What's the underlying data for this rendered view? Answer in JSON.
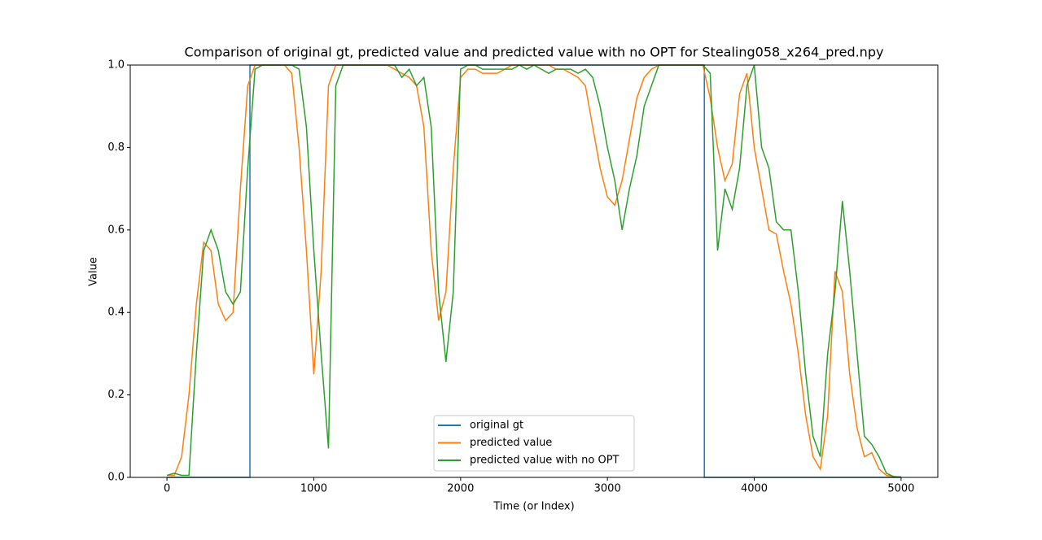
{
  "chart_data": {
    "type": "line",
    "title": "Comparison of original gt, predicted value and predicted value with no OPT for Stealing058_x264_pred.npy",
    "xlabel": "Time (or Index)",
    "ylabel": "Value",
    "xlim": [
      -250,
      5250
    ],
    "ylim": [
      0,
      1
    ],
    "xticks": [
      0,
      1000,
      2000,
      3000,
      4000,
      5000
    ],
    "yticks": [
      {
        "value": 0,
        "label": "0.0"
      },
      0.2,
      0.4,
      0.6,
      0.8,
      {
        "value": 1,
        "label": "1.0"
      }
    ],
    "legend": "lower center",
    "series": [
      {
        "name": "original gt",
        "color": "#1f77b4",
        "x": [
          0,
          565,
          565,
          3660,
          3660,
          5000
        ],
        "values": [
          0,
          0,
          1,
          1,
          0,
          0
        ]
      },
      {
        "name": "predicted value",
        "color": "#ff7f0e",
        "x": [
          0,
          50,
          100,
          150,
          200,
          250,
          300,
          350,
          400,
          450,
          500,
          550,
          600,
          650,
          700,
          750,
          800,
          850,
          900,
          950,
          1000,
          1050,
          1100,
          1150,
          1200,
          1250,
          1300,
          1350,
          1400,
          1450,
          1500,
          1550,
          1600,
          1650,
          1700,
          1750,
          1800,
          1850,
          1900,
          1950,
          2000,
          2050,
          2100,
          2150,
          2200,
          2250,
          2300,
          2350,
          2400,
          2450,
          2500,
          2550,
          2600,
          2650,
          2700,
          2750,
          2800,
          2850,
          2900,
          2950,
          3000,
          3050,
          3100,
          3150,
          3200,
          3250,
          3300,
          3350,
          3400,
          3450,
          3500,
          3550,
          3600,
          3650,
          3700,
          3750,
          3800,
          3850,
          3900,
          3950,
          4000,
          4050,
          4100,
          4150,
          4200,
          4250,
          4300,
          4350,
          4400,
          4450,
          4500,
          4550,
          4600,
          4650,
          4700,
          4750,
          4800,
          4850,
          4900,
          4950,
          5000
        ],
        "values": [
          0.005,
          0.005,
          0.05,
          0.2,
          0.42,
          0.57,
          0.55,
          0.42,
          0.38,
          0.4,
          0.7,
          0.95,
          1.0,
          1.0,
          1.0,
          1.0,
          1.0,
          0.98,
          0.8,
          0.55,
          0.25,
          0.5,
          0.95,
          1.0,
          1.0,
          1.0,
          1.0,
          1.0,
          1.0,
          1.0,
          1.0,
          0.99,
          0.98,
          0.97,
          0.95,
          0.85,
          0.55,
          0.38,
          0.45,
          0.75,
          0.97,
          0.99,
          0.99,
          0.98,
          0.98,
          0.98,
          0.99,
          1.0,
          1.0,
          1.0,
          1.0,
          1.0,
          1.0,
          0.99,
          0.99,
          0.98,
          0.97,
          0.95,
          0.85,
          0.75,
          0.68,
          0.66,
          0.72,
          0.82,
          0.92,
          0.97,
          0.99,
          1.0,
          1.0,
          1.0,
          1.0,
          1.0,
          1.0,
          1.0,
          0.92,
          0.8,
          0.72,
          0.76,
          0.93,
          0.98,
          0.8,
          0.7,
          0.6,
          0.59,
          0.5,
          0.42,
          0.3,
          0.15,
          0.05,
          0.02,
          0.15,
          0.5,
          0.45,
          0.25,
          0.12,
          0.05,
          0.06,
          0.02,
          0.005,
          0.002,
          0.001
        ]
      },
      {
        "name": "predicted value with no OPT",
        "color": "#2ca02c",
        "x": [
          0,
          50,
          100,
          150,
          200,
          250,
          300,
          350,
          400,
          450,
          500,
          550,
          600,
          650,
          700,
          750,
          800,
          850,
          900,
          950,
          1000,
          1050,
          1100,
          1150,
          1200,
          1250,
          1300,
          1350,
          1400,
          1450,
          1500,
          1550,
          1600,
          1650,
          1700,
          1750,
          1800,
          1850,
          1900,
          1950,
          2000,
          2050,
          2100,
          2150,
          2200,
          2250,
          2300,
          2350,
          2400,
          2450,
          2500,
          2550,
          2600,
          2650,
          2700,
          2750,
          2800,
          2850,
          2900,
          2950,
          3000,
          3050,
          3100,
          3150,
          3200,
          3250,
          3300,
          3350,
          3400,
          3450,
          3500,
          3550,
          3600,
          3650,
          3700,
          3750,
          3800,
          3850,
          3900,
          3950,
          4000,
          4050,
          4100,
          4150,
          4200,
          4250,
          4300,
          4350,
          4400,
          4450,
          4500,
          4550,
          4600,
          4650,
          4700,
          4750,
          4800,
          4850,
          4900,
          4950,
          5000
        ],
        "values": [
          0.005,
          0.01,
          0.005,
          0.005,
          0.3,
          0.55,
          0.6,
          0.55,
          0.45,
          0.42,
          0.45,
          0.75,
          0.99,
          1.0,
          1.0,
          1.0,
          1.0,
          1.0,
          0.99,
          0.85,
          0.55,
          0.3,
          0.07,
          0.95,
          1.0,
          1.0,
          1.0,
          1.0,
          1.0,
          1.0,
          1.0,
          1.0,
          0.97,
          0.99,
          0.95,
          0.97,
          0.85,
          0.45,
          0.28,
          0.45,
          0.99,
          1.0,
          1.0,
          0.99,
          0.99,
          0.99,
          0.99,
          0.99,
          1.0,
          0.99,
          1.0,
          0.99,
          0.98,
          0.99,
          0.99,
          0.99,
          0.98,
          0.99,
          0.97,
          0.9,
          0.8,
          0.72,
          0.6,
          0.7,
          0.78,
          0.9,
          0.95,
          1.0,
          1.0,
          1.0,
          1.0,
          1.0,
          1.0,
          1.0,
          0.98,
          0.55,
          0.7,
          0.65,
          0.75,
          0.95,
          1.0,
          0.8,
          0.75,
          0.62,
          0.6,
          0.6,
          0.45,
          0.25,
          0.1,
          0.05,
          0.3,
          0.45,
          0.67,
          0.5,
          0.3,
          0.1,
          0.08,
          0.05,
          0.01,
          0.002,
          0.001
        ]
      }
    ]
  }
}
